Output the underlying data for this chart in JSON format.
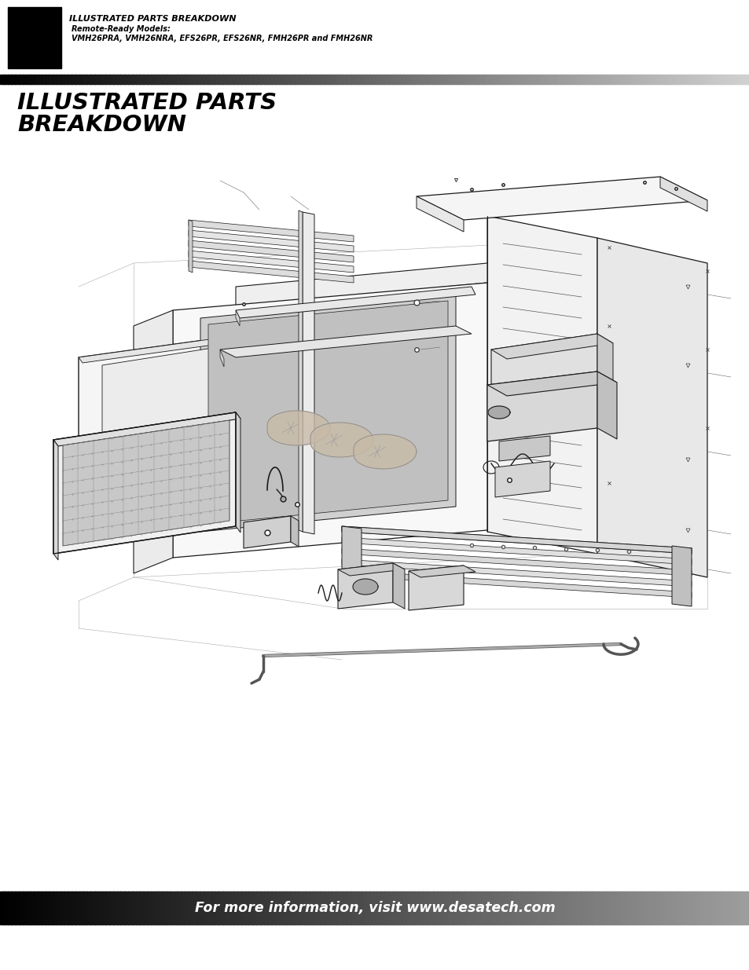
{
  "page_bg": "#ffffff",
  "header_title": "ILLUSTRATED PARTS BREAKDOWN",
  "header_subtitle1": "Remote-Ready Models:",
  "header_subtitle2": "VMH26PRA, VMH26NRA, EFS26PR, EFS26NR, FMH26PR and FMH26NR",
  "section_title_line1": "ILLUSTRATED PARTS",
  "section_title_line2": "BREAKDOWN",
  "footer_text": "For more information, visit www.desatech.com",
  "footer_text_color": "#ffffff",
  "lc": "#1a1a1a",
  "lw": 0.8
}
